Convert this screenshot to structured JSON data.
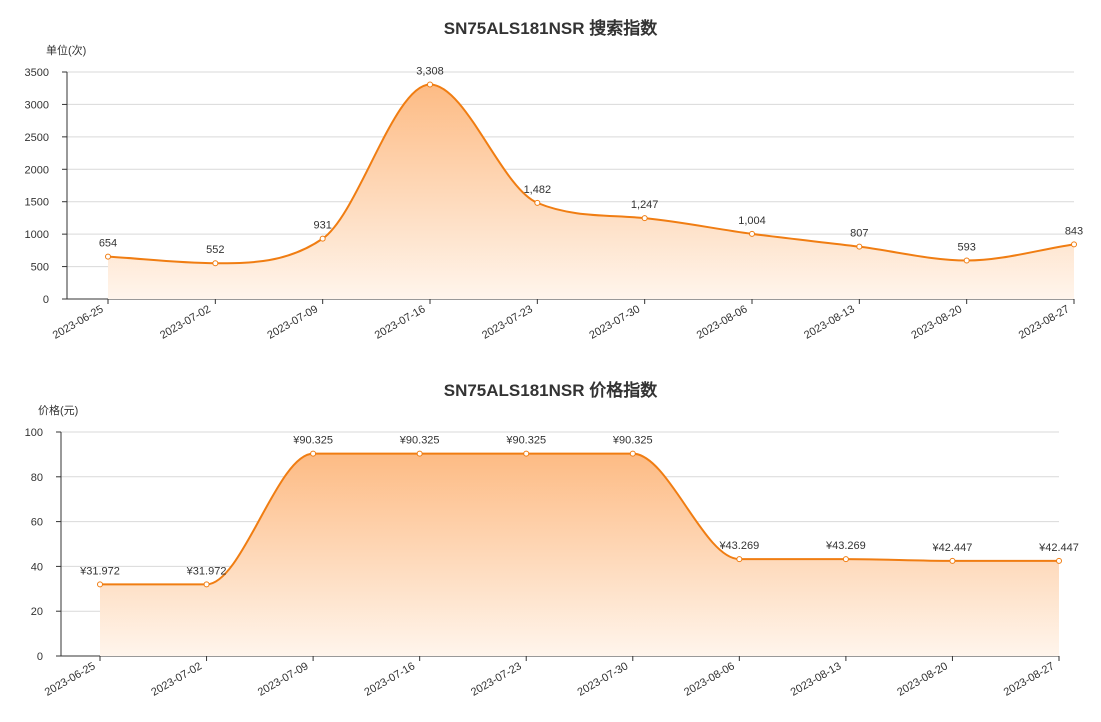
{
  "chart_data": [
    {
      "type": "area",
      "title": "SN75ALS181NSR 搜索指数",
      "ylabel": "单位(次)",
      "xlabel": "",
      "categories": [
        "2023-06-25",
        "2023-07-02",
        "2023-07-09",
        "2023-07-16",
        "2023-07-23",
        "2023-07-30",
        "2023-08-06",
        "2023-08-13",
        "2023-08-20",
        "2023-08-27"
      ],
      "values": [
        654,
        552,
        931,
        3308,
        1482,
        1247,
        1004,
        807,
        593,
        843
      ],
      "value_labels": [
        "654",
        "552",
        "931",
        "3,308",
        "1,482",
        "1,247",
        "1,004",
        "807",
        "593",
        "843"
      ],
      "ylim": [
        0,
        3500
      ],
      "yticks": [
        0,
        500,
        1000,
        1500,
        2000,
        2500,
        3000,
        3500
      ],
      "grid": true,
      "line_color": "#f07d12",
      "fill_top_color": "#fdbb84",
      "fill_bottom_color": "#fff5ec"
    },
    {
      "type": "area",
      "title": "SN75ALS181NSR 价格指数",
      "ylabel": "价格(元)",
      "xlabel": "",
      "categories": [
        "2023-06-25",
        "2023-07-02",
        "2023-07-09",
        "2023-07-16",
        "2023-07-23",
        "2023-07-30",
        "2023-08-06",
        "2023-08-13",
        "2023-08-20",
        "2023-08-27"
      ],
      "values": [
        31.972,
        31.972,
        90.325,
        90.325,
        90.325,
        90.325,
        43.269,
        43.269,
        42.447,
        42.447
      ],
      "value_labels": [
        "¥31.972",
        "¥31.972",
        "¥90.325",
        "¥90.325",
        "¥90.325",
        "¥90.325",
        "¥43.269",
        "¥43.269",
        "¥42.447",
        "¥42.447"
      ],
      "ylim": [
        0,
        100
      ],
      "yticks": [
        0,
        20,
        40,
        60,
        80,
        100
      ],
      "grid": true,
      "line_color": "#f07d12",
      "fill_top_color": "#fdbb84",
      "fill_bottom_color": "#fff5ec"
    }
  ]
}
